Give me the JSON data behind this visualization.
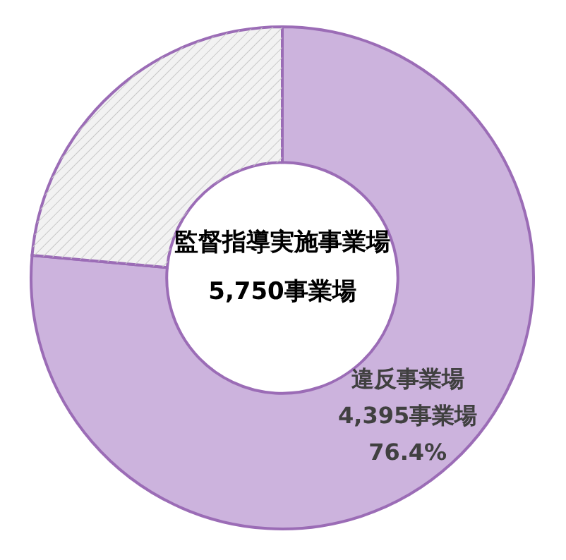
{
  "chart_data": {
    "type": "donut",
    "categories": [
      "違反事業場",
      null
    ],
    "values": [
      4395,
      1355
    ],
    "value_labels": [
      "4,395事業場",
      null
    ],
    "colors": [
      "#ccb3dd",
      "#f2f2f2"
    ],
    "annotations": [
      "監督指導実施事業場",
      "5,750事業場",
      "76.4%"
    ]
  }
}
